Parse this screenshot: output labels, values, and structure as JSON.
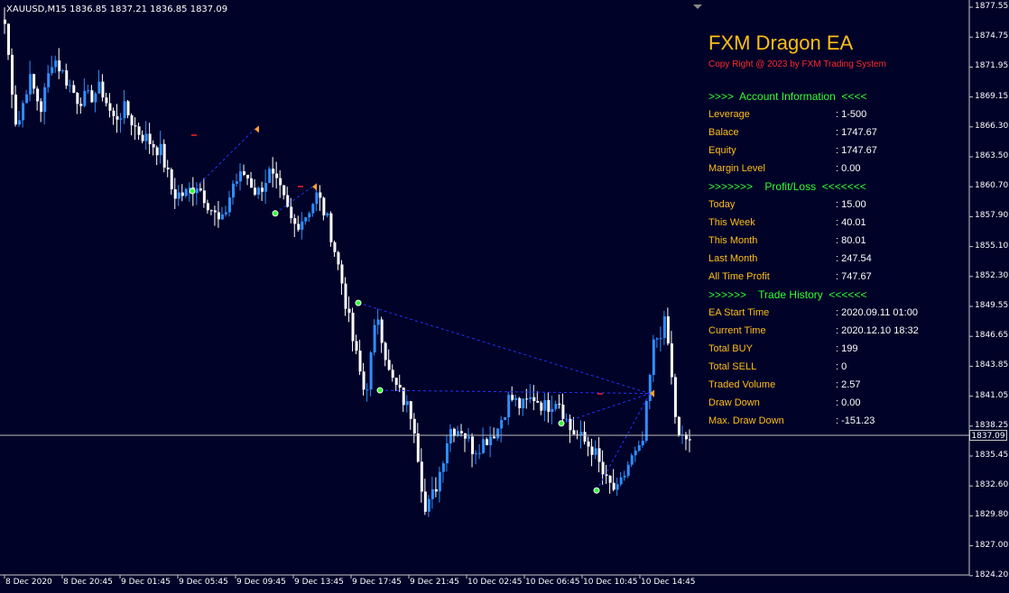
{
  "symbol_bar": {
    "symbol": "XAUUSD,M15",
    "ohlc": "1836.85 1837.21 1836.85 1837.09"
  },
  "ea": {
    "title": "FXM Dragon EA",
    "copyright": "Copy Right @ 2023 by FXM Trading System",
    "sections": {
      "account": ">>>>  Account Information  <<<<",
      "profit": ">>>>>>>    Profit/Loss  <<<<<<<",
      "history": ">>>>>>    Trade History  <<<<<<"
    },
    "account": [
      {
        "label": "Leverage",
        "value": ": 1-500"
      },
      {
        "label": "Balace",
        "value": ": 1747.67"
      },
      {
        "label": "Equity",
        "value": ": 1747.67"
      },
      {
        "label": "Margin Level",
        "value": ": 0.00"
      }
    ],
    "profit": [
      {
        "label": "Today",
        "value": ": 15.00"
      },
      {
        "label": "This Week",
        "value": ": 40.01"
      },
      {
        "label": "This Month",
        "value": ": 80.01"
      },
      {
        "label": "Last Month",
        "value": ": 247.54"
      },
      {
        "label": "All Time Profit",
        "value": ": 747.67"
      }
    ],
    "history": [
      {
        "label": "EA Start Time",
        "value": ": 2020.09.11 01:00"
      },
      {
        "label": "Current Time",
        "value": ": 2020.12.10 18:32"
      },
      {
        "label": "Total BUY",
        "value": ": 199"
      },
      {
        "label": "Total SELL",
        "value": ": 0"
      },
      {
        "label": "Traded Volume",
        "value": ": 2.57"
      },
      {
        "label": "Draw Down",
        "value": ": 0.00"
      },
      {
        "label": "Max. Draw Down",
        "value": ": -151.23"
      }
    ]
  },
  "price_axis": {
    "labels": [
      "1877.55",
      "1874.75",
      "1871.95",
      "1869.15",
      "1866.30",
      "1863.50",
      "1860.70",
      "1857.90",
      "1855.10",
      "1852.30",
      "1849.55",
      "1846.65",
      "1843.85",
      "1841.05",
      "1838.25",
      "1835.45",
      "1832.60",
      "1829.80",
      "1827.00",
      "1824.20"
    ],
    "current_price": "1837.09",
    "range": [
      1824.2,
      1877.55
    ]
  },
  "time_axis": {
    "labels": [
      "8 Dec 2020",
      "8 Dec 20:45",
      "9 Dec 01:45",
      "9 Dec 05:45",
      "9 Dec 09:45",
      "9 Dec 13:45",
      "9 Dec 17:45",
      "9 Dec 21:45",
      "10 Dec 02:45",
      "10 Dec 06:45",
      "10 Dec 10:45",
      "10 Dec 14:45"
    ]
  },
  "colors": {
    "background": "#000228",
    "bull": "#2f8fff",
    "bear": "#ffffff",
    "trade_line": "#2233ff",
    "text": "#ffbf14",
    "section": "#33ff33"
  },
  "chart_data": {
    "type": "candlestick",
    "symbol": "XAUUSD",
    "timeframe": "M15",
    "close_path": [
      1876,
      1866,
      1871,
      1868,
      1873,
      1871,
      1869,
      1869,
      1870,
      1867,
      1868,
      1866,
      1865,
      1864,
      1860,
      1860,
      1861,
      1859,
      1857,
      1861,
      1862,
      1860,
      1862,
      1860,
      1857,
      1858,
      1860,
      1857,
      1852,
      1846,
      1841,
      1849,
      1843,
      1841,
      1839,
      1830,
      1833,
      1838,
      1838,
      1836,
      1837,
      1838,
      1841,
      1840,
      1841,
      1840,
      1841,
      1838,
      1837,
      1836,
      1833,
      1832,
      1835,
      1836,
      1846,
      1848,
      1837,
      1837
    ],
    "trades": [
      {
        "type": "buy",
        "open_price": 1860.3,
        "close_price": 1866.1
      },
      {
        "type": "buy",
        "open_price": 1858.2,
        "close_price": 1860.7
      },
      {
        "type": "buy",
        "open_price": 1849.8,
        "close_price": 1841.3
      },
      {
        "type": "buy",
        "open_price": 1841.6,
        "close_price": 1841.3
      },
      {
        "type": "buy",
        "open_price": 1838.5,
        "close_price": 1841.3
      },
      {
        "type": "buy",
        "open_price": 1832.2,
        "close_price": 1841.3
      }
    ]
  }
}
